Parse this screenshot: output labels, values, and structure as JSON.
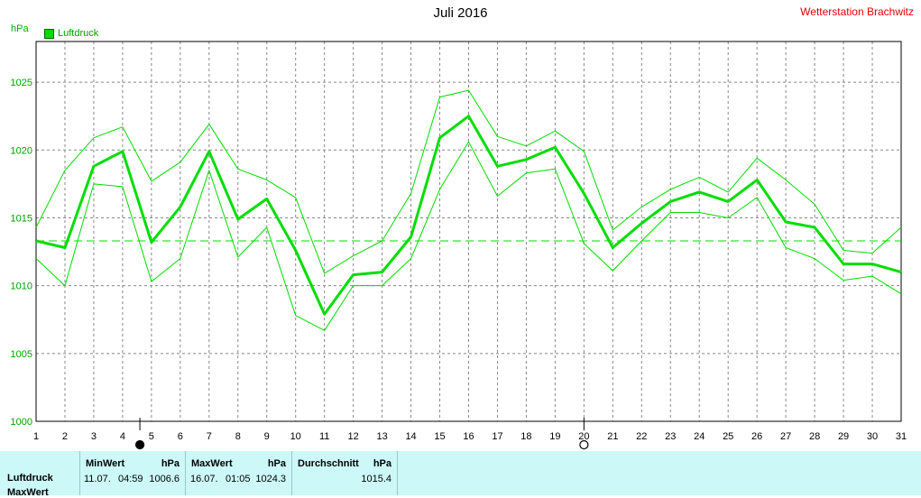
{
  "title": "Juli 2016",
  "station": "Wetterstation Brachwitz",
  "unit_label": "hPa",
  "legend": {
    "label": "Luftdruck"
  },
  "colors": {
    "series": "#00dd00",
    "grid": "#888888",
    "axis": "#000000",
    "stats_bg": "#ccf8f8",
    "title_station": "#e00000"
  },
  "moon_markers": [
    {
      "day": 4.6,
      "icon": "full-moon-icon"
    },
    {
      "day": 20.0,
      "icon": "new-moon-icon"
    }
  ],
  "stats": {
    "row_labels": [
      "Luftdruck",
      "MaxWert"
    ],
    "min": {
      "header": "MinWert",
      "unit": "hPa",
      "date": "11.07.",
      "time": "04:59",
      "value": "1006.6"
    },
    "max": {
      "header": "MaxWert",
      "unit": "hPa",
      "date": "16.07.",
      "time": "01:05",
      "value": "1024.3"
    },
    "avg": {
      "header": "Durchschnitt",
      "unit": "hPa",
      "value": "1015.4"
    }
  },
  "chart_data": {
    "type": "line",
    "title": "Juli 2016",
    "ylabel": "hPa",
    "xlim": [
      1,
      31
    ],
    "ylim": [
      1000,
      1028
    ],
    "x": [
      1,
      2,
      3,
      4,
      5,
      6,
      7,
      8,
      9,
      10,
      11,
      12,
      13,
      14,
      15,
      16,
      17,
      18,
      19,
      20,
      21,
      22,
      23,
      24,
      25,
      26,
      27,
      28,
      29,
      30,
      31
    ],
    "xticks": [
      "1",
      "2",
      "3",
      "4",
      "5",
      "6",
      "7",
      "8",
      "9",
      "10",
      "11",
      "12",
      "13",
      "14",
      "15",
      "16",
      "17",
      "18",
      "19",
      "20",
      "21",
      "22",
      "23",
      "24",
      "25",
      "26",
      "27",
      "28",
      "29",
      "30",
      "31"
    ],
    "yticks": [
      1000,
      1005,
      1010,
      1015,
      1020,
      1025
    ],
    "grid": true,
    "reference_line": 1013.3,
    "series": [
      {
        "name": "Luftdruck",
        "role": "mean",
        "values": [
          1013.3,
          1012.8,
          1018.8,
          1019.9,
          1013.2,
          1015.8,
          1019.9,
          1014.9,
          1016.4,
          1012.6,
          1007.9,
          1010.8,
          1011.0,
          1013.6,
          1020.9,
          1022.5,
          1018.8,
          1019.3,
          1020.2,
          1016.8,
          1012.8,
          1014.6,
          1016.2,
          1016.9,
          1016.2,
          1017.8,
          1014.7,
          1014.3,
          1011.6,
          1011.6,
          1011.0
        ]
      },
      {
        "role": "max",
        "values": [
          1014.3,
          1018.5,
          1020.9,
          1021.7,
          1017.7,
          1019.1,
          1021.9,
          1018.6,
          1017.8,
          1016.5,
          1010.9,
          1012.2,
          1013.3,
          1016.8,
          1023.9,
          1024.4,
          1021.0,
          1020.3,
          1021.4,
          1019.9,
          1014.1,
          1015.8,
          1017.1,
          1018.0,
          1016.9,
          1019.4,
          1017.8,
          1016.0,
          1012.6,
          1012.4,
          1014.3
        ]
      },
      {
        "role": "min",
        "values": [
          1012.0,
          1010.0,
          1017.5,
          1017.3,
          1010.3,
          1012.0,
          1018.5,
          1012.1,
          1014.3,
          1007.8,
          1006.7,
          1010.0,
          1010.0,
          1012.0,
          1017.1,
          1020.6,
          1016.6,
          1018.3,
          1018.6,
          1013.1,
          1011.1,
          1013.3,
          1015.4,
          1015.4,
          1015.0,
          1016.5,
          1012.8,
          1012.0,
          1010.4,
          1010.7,
          1009.4
        ]
      }
    ]
  }
}
